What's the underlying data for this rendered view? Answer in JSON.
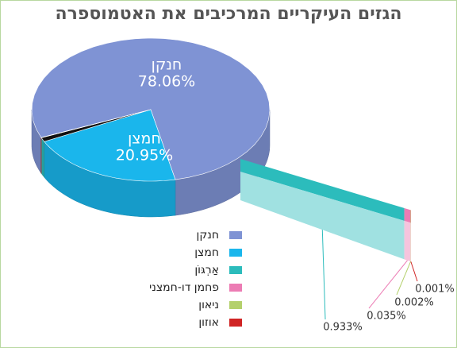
{
  "chart_data": {
    "type": "pie",
    "title": "הגזים העיקריים המרכיבים את האטמוספרה",
    "categories": [
      "חנקן",
      "חמצן",
      "אַרְגּוֹן",
      "פחמן דו-חמצני",
      "ניאון",
      "אוזון"
    ],
    "values": [
      78.06,
      20.95,
      0.933,
      0.035,
      0.002,
      0.001
    ],
    "value_labels": [
      "78.06%",
      "20.95%",
      "0.933%",
      "0.035%",
      "0.002%",
      "0.001%"
    ],
    "colors": [
      "#7f93d4",
      "#1ab6ec",
      "#2cbcbc",
      "#ec7cb4",
      "#b4d06c",
      "#d02424"
    ]
  }
}
